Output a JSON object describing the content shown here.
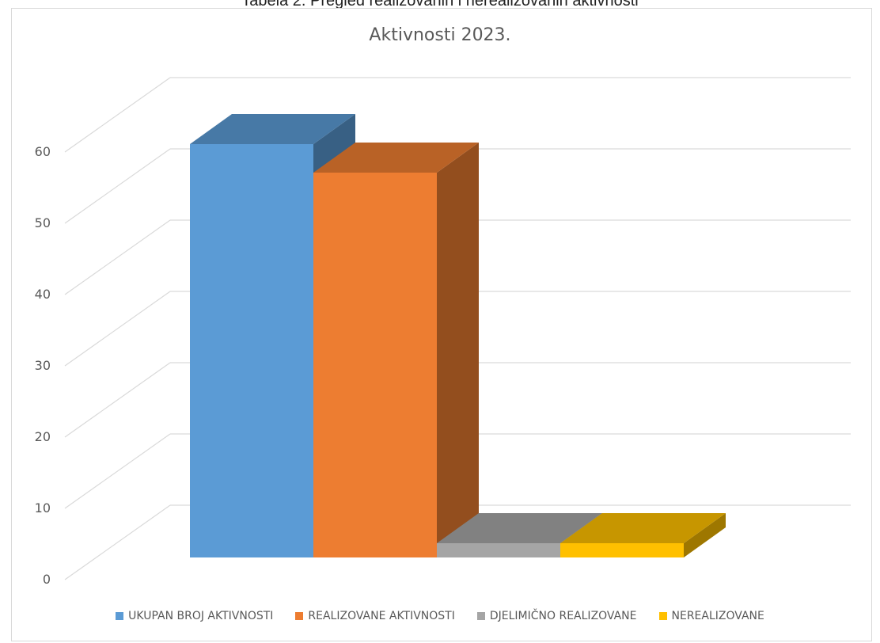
{
  "caption": "Tabela 2. Pregled realizovanih i nerealizovanih aktivnosti",
  "chart_data": {
    "type": "bar",
    "title": "Aktivnosti 2023.",
    "xlabel": "",
    "ylabel": "",
    "ylim": [
      0,
      60
    ],
    "yticks": [
      "0",
      "10",
      "20",
      "30",
      "40",
      "50",
      "60"
    ],
    "grid": true,
    "legend_position": "bottom",
    "series": [
      {
        "name": "UKUPAN BROJ AKTIVNOSTI",
        "value": 58,
        "color": "#5B9BD5"
      },
      {
        "name": "REALIZOVANE AKTIVNOSTI",
        "value": 54,
        "color": "#ED7D31"
      },
      {
        "name": "DJELIMIČNO REALIZOVANE",
        "value": 2,
        "color": "#A5A5A5"
      },
      {
        "name": "NEREALIZOVANE",
        "value": 2,
        "color": "#FFC000"
      }
    ]
  }
}
